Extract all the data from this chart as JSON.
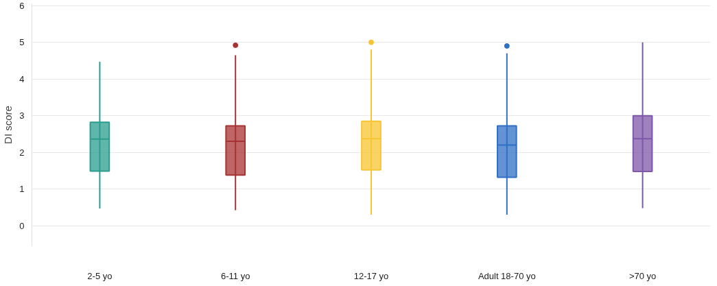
{
  "chart_data": {
    "type": "box",
    "ylabel": "DI score",
    "categories": [
      "2-5 yo",
      "6-11 yo",
      "12-17 yo",
      "Adult 18-70 yo",
      ">70 yo"
    ],
    "colors": [
      "#2a9d8f",
      "#a83232",
      "#f7c531",
      "#2f6fc4",
      "#7e57a8"
    ],
    "boxes": [
      {
        "low": 0.47,
        "q1": 1.49,
        "median": 2.36,
        "q3": 2.82,
        "high": 4.47
      },
      {
        "low": 0.42,
        "q1": 1.38,
        "median": 2.3,
        "q3": 2.72,
        "high": 4.65,
        "outliers": [
          4.92
        ]
      },
      {
        "low": 0.3,
        "q1": 1.52,
        "median": 2.37,
        "q3": 2.85,
        "high": 4.8,
        "outliers": [
          5.0
        ]
      },
      {
        "low": 0.3,
        "q1": 1.32,
        "median": 2.2,
        "q3": 2.72,
        "high": 4.7,
        "outliers": [
          4.9
        ]
      },
      {
        "low": 0.48,
        "q1": 1.48,
        "median": 2.37,
        "q3": 3.0,
        "high": 5.0
      }
    ],
    "ylim": [
      -0.55,
      6.05
    ],
    "yticks": [
      0,
      1,
      2,
      3,
      4,
      5,
      6
    ],
    "grid": "y"
  }
}
